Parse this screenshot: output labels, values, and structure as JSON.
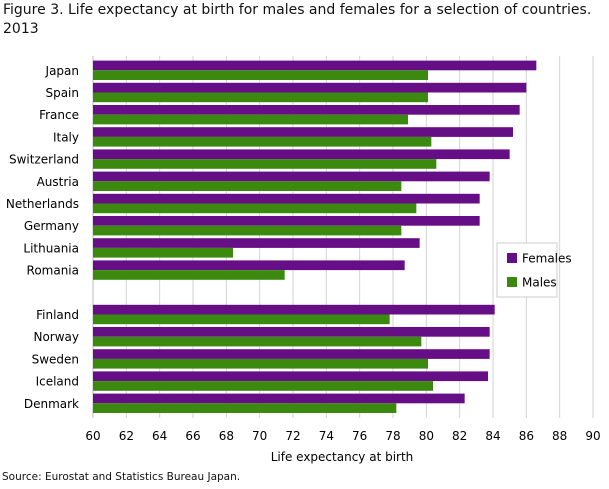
{
  "title": "Figure 3. Life expectancy at birth  for males and females for a selection of countries. 2013",
  "source": "Source: Eurostat and Statistics Bureau Japan.",
  "chart_data": {
    "type": "bar",
    "orientation": "horizontal",
    "xlabel": "Life expectancy at birth",
    "ylabel": "",
    "xlim": [
      60,
      90
    ],
    "x_ticks": [
      60,
      62,
      64,
      66,
      68,
      70,
      72,
      74,
      76,
      78,
      80,
      82,
      84,
      86,
      88,
      90
    ],
    "grid": true,
    "legend_position": "right",
    "groups": [
      {
        "categories": [
          "Japan",
          "Spain",
          "France",
          "Italy",
          "Switzerland",
          "Austria",
          "Netherlands",
          "Germany",
          "Lithuania",
          "Romania"
        ]
      },
      {
        "categories": [
          "Finland",
          "Norway",
          "Sweden",
          "Iceland",
          "Denmark"
        ]
      }
    ],
    "series": [
      {
        "name": "Females",
        "color": "#660e86",
        "values": [
          86.6,
          86.0,
          85.6,
          85.2,
          85.0,
          83.8,
          83.2,
          83.2,
          79.6,
          78.7,
          84.1,
          83.8,
          83.8,
          83.7,
          82.3
        ]
      },
      {
        "name": "Males",
        "color": "#3b8a0f",
        "values": [
          80.1,
          80.1,
          78.9,
          80.3,
          80.6,
          78.5,
          79.4,
          78.5,
          68.4,
          71.5,
          77.8,
          79.7,
          80.1,
          80.4,
          78.2
        ]
      }
    ]
  }
}
